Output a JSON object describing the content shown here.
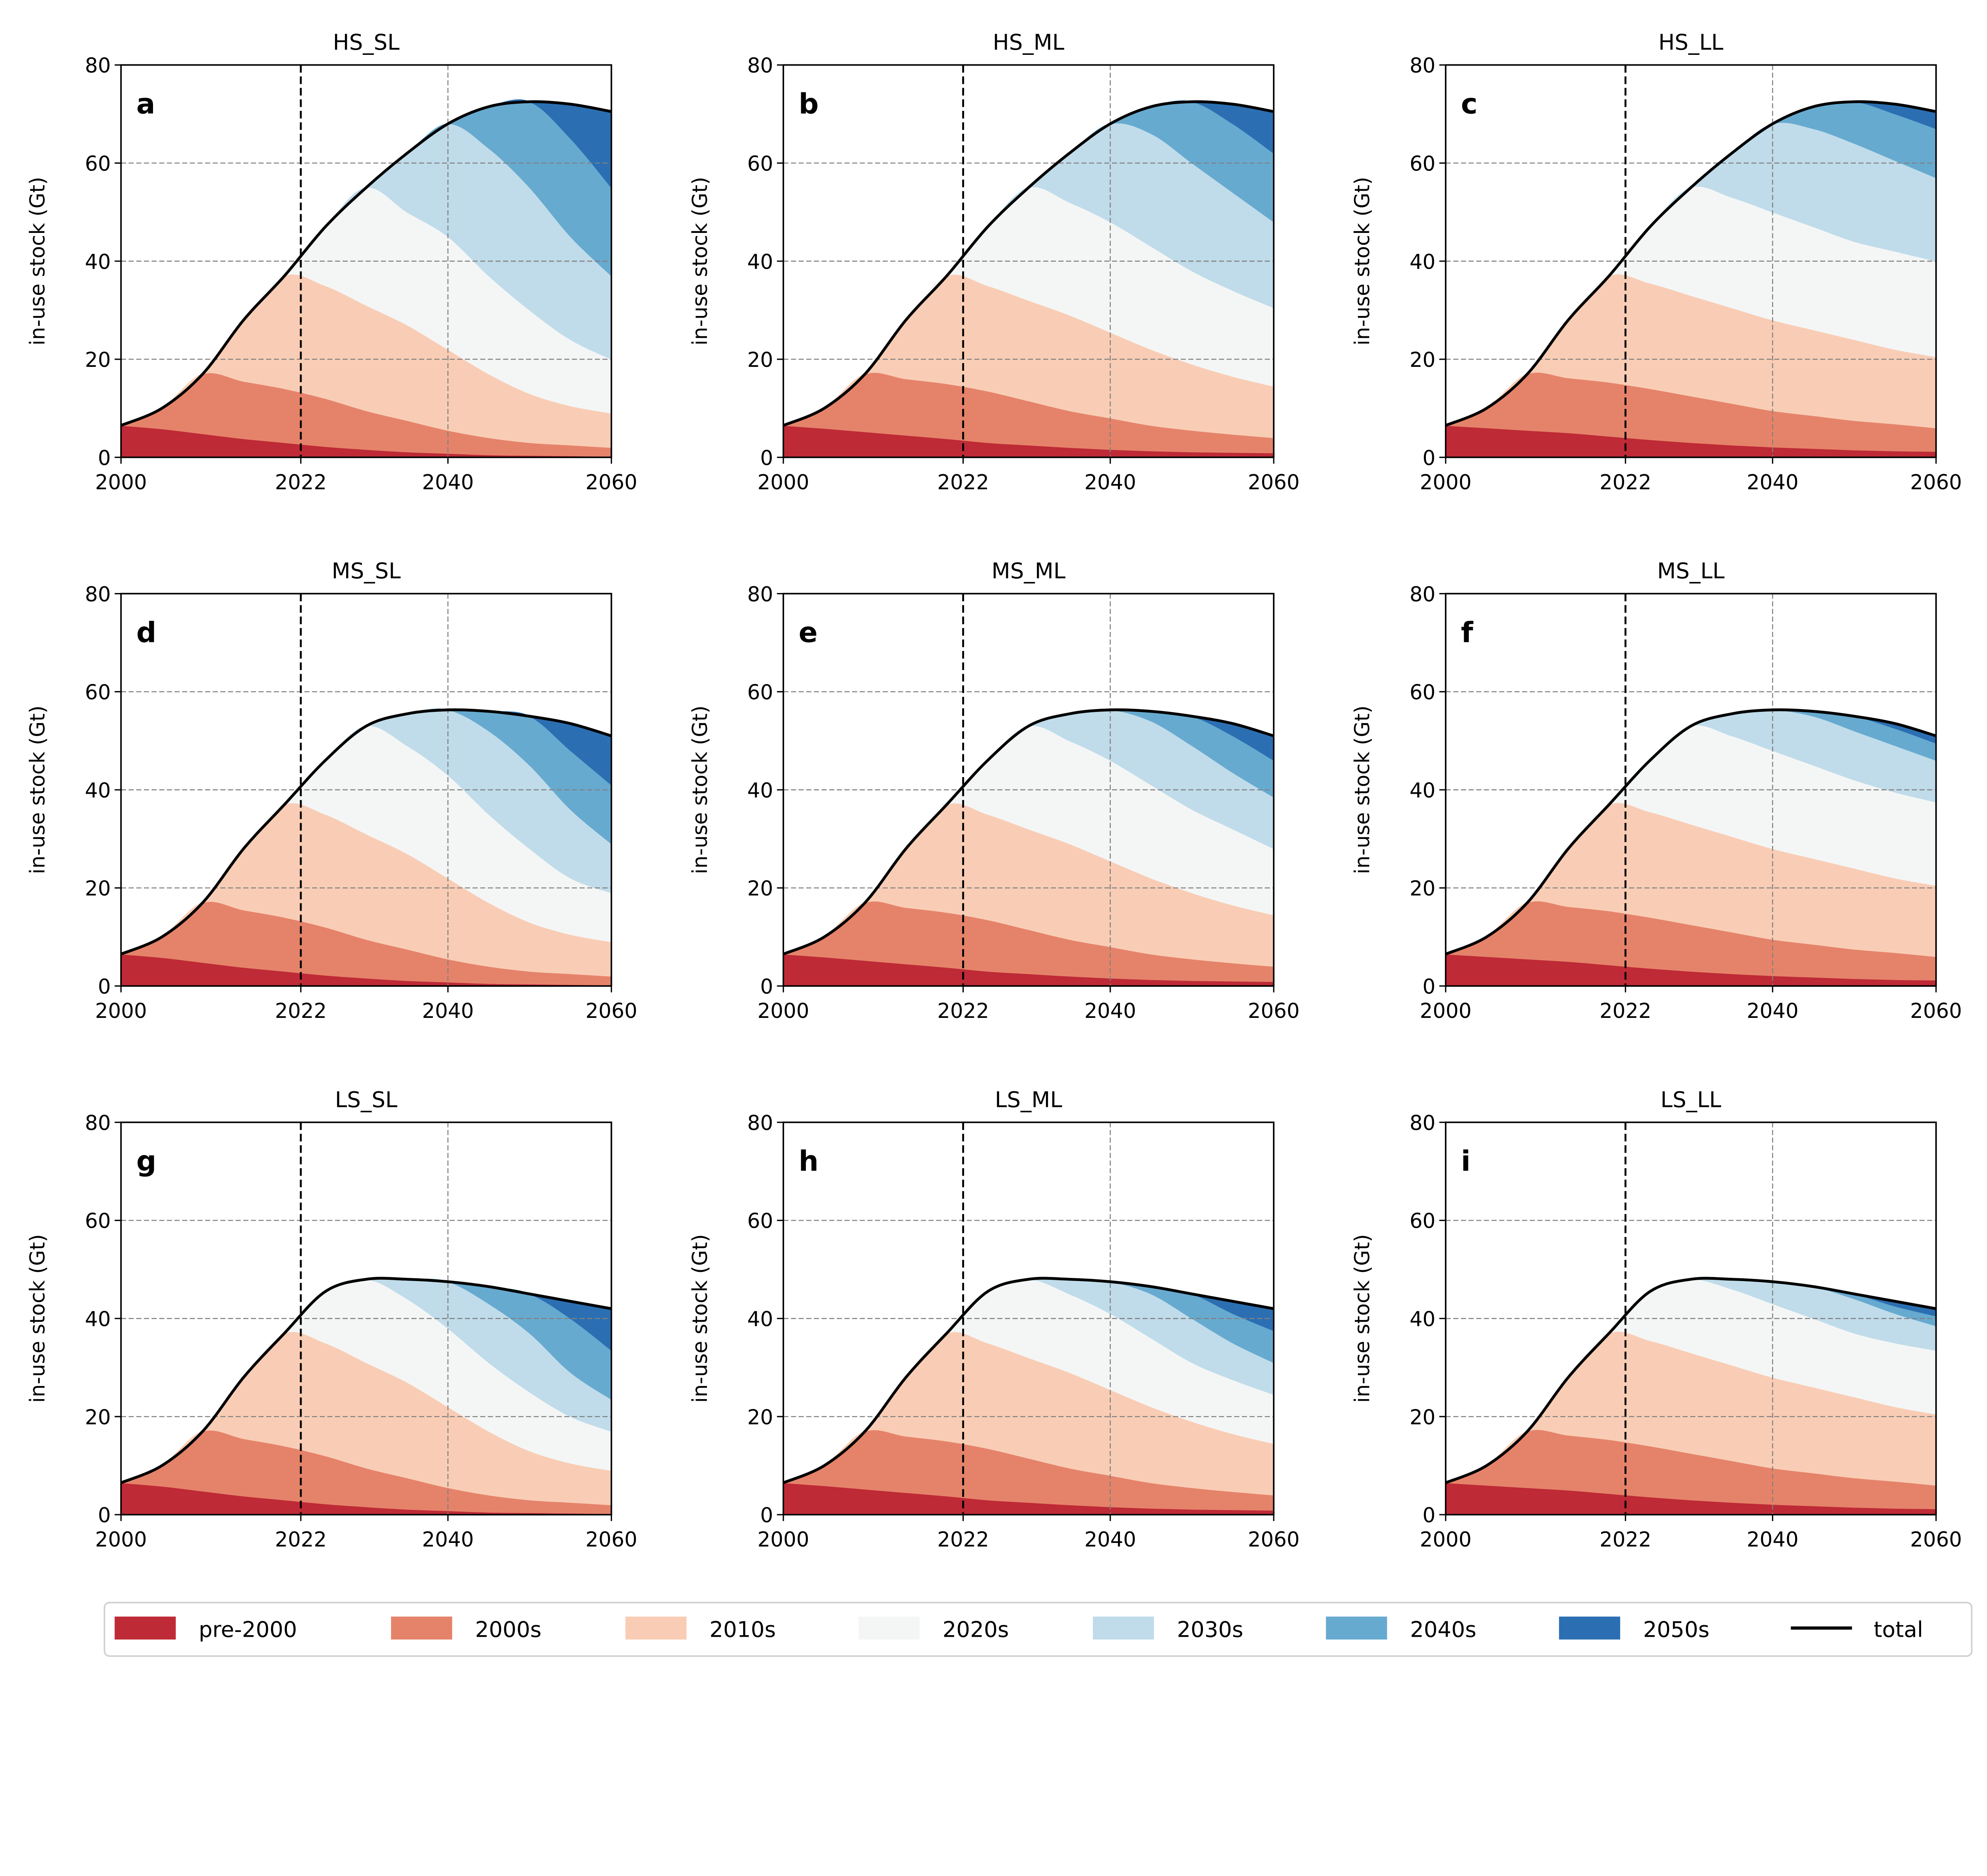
{
  "chart_data": {
    "type": "area",
    "stacked": true,
    "ylabel": "in-use stock (Gt)",
    "ylim": [
      0,
      80
    ],
    "xlim": [
      2000,
      2060
    ],
    "xticks": [
      "2000",
      "2022",
      "2040",
      "2060"
    ],
    "yticks": [
      "0",
      "20",
      "40",
      "60",
      "80"
    ],
    "grid": true,
    "reference_line_x": 2022,
    "legend_position": "bottom",
    "x": [
      2000,
      2005,
      2010,
      2015,
      2020,
      2025,
      2030,
      2035,
      2040,
      2045,
      2050,
      2055,
      2060
    ],
    "series_names": [
      "pre-2000",
      "2000s",
      "2010s",
      "2020s",
      "2030s",
      "2040s",
      "2050s"
    ],
    "total_name": "total",
    "colors": [
      "#be2a36",
      "#e5836a",
      "#f9cdb5",
      "#f4f6f6",
      "#c0dcea",
      "#67aad0",
      "#2b6fb2"
    ],
    "total_color": "#000000",
    "panels": [
      {
        "letter": "a",
        "title": "HS_SL",
        "total": [
          6.5,
          10,
          17,
          28,
          37,
          47,
          55,
          62,
          68,
          71.5,
          72.5,
          72,
          70.5
        ],
        "series": [
          [
            6.5,
            5.8,
            4.8,
            3.8,
            3.0,
            2.2,
            1.6,
            1.1,
            0.8,
            0.5,
            0.4,
            0.3,
            0.2
          ],
          [
            0,
            4.2,
            12.2,
            11.7,
            11,
            9.8,
            7.9,
            6.4,
            4.7,
            3.5,
            2.6,
            2.2,
            1.8
          ],
          [
            0,
            0,
            0,
            12.5,
            23,
            23,
            21.5,
            19.5,
            16.5,
            13,
            10,
            8,
            7
          ],
          [
            0,
            0,
            0,
            0,
            0,
            12,
            24,
            23,
            23,
            20,
            17,
            13.5,
            11
          ],
          [
            0,
            0,
            0,
            0,
            0,
            0,
            0,
            12,
            23,
            26,
            25,
            21,
            17
          ],
          [
            0,
            0,
            0,
            0,
            0,
            0,
            0,
            0,
            0,
            8.5,
            17.5,
            20,
            18
          ],
          [
            0,
            0,
            0,
            0,
            0,
            0,
            0,
            0,
            0,
            0,
            0,
            7,
            15.5
          ]
        ]
      },
      {
        "letter": "b",
        "title": "HS_ML",
        "total": [
          6.5,
          10,
          17,
          28,
          37,
          47,
          55,
          62,
          68,
          71.5,
          72.5,
          72,
          70.5
        ],
        "series": [
          [
            6.5,
            5.9,
            5.2,
            4.5,
            3.8,
            3,
            2.5,
            2,
            1.6,
            1.3,
            1.1,
            1,
            0.9
          ],
          [
            0,
            4.1,
            11.8,
            11.5,
            11.2,
            10.5,
            9,
            7.5,
            6.4,
            5.2,
            4.4,
            3.7,
            3.1
          ],
          [
            0,
            0,
            0,
            12,
            22,
            21.5,
            20.5,
            19.5,
            17.5,
            15.5,
            13.5,
            11.8,
            10.5
          ],
          [
            0,
            0,
            0,
            0,
            0,
            12,
            23,
            23,
            22.5,
            21,
            19,
            17.5,
            16
          ],
          [
            0,
            0,
            0,
            0,
            0,
            0,
            0,
            10,
            20,
            23,
            22,
            20,
            17.5
          ],
          [
            0,
            0,
            0,
            0,
            0,
            0,
            0,
            0,
            0,
            5.5,
            12.5,
            14,
            14
          ],
          [
            0,
            0,
            0,
            0,
            0,
            0,
            0,
            0,
            0,
            0,
            0,
            4,
            8.5
          ]
        ]
      },
      {
        "letter": "c",
        "title": "HS_LL",
        "total": [
          6.5,
          10,
          17,
          28,
          37,
          47,
          55,
          62,
          68,
          71.5,
          72.5,
          72,
          70.5
        ],
        "series": [
          [
            6.5,
            6,
            5.5,
            5,
            4.3,
            3.6,
            3,
            2.5,
            2.1,
            1.8,
            1.5,
            1.3,
            1.2
          ],
          [
            0,
            4,
            11.5,
            11.2,
            11,
            10.4,
            9.5,
            8.5,
            7.4,
            6.7,
            6,
            5.5,
            4.8
          ],
          [
            0,
            0,
            0,
            11.8,
            21.7,
            21.5,
            20.5,
            19.5,
            18.5,
            17.5,
            16.5,
            15.2,
            14.5
          ],
          [
            0,
            0,
            0,
            0,
            0,
            11.5,
            22,
            22.5,
            22,
            21,
            20,
            20,
            19.5
          ],
          [
            0,
            0,
            0,
            0,
            0,
            0,
            0,
            9,
            18,
            20,
            20,
            18.5,
            17
          ],
          [
            0,
            0,
            0,
            0,
            0,
            0,
            0,
            0,
            0,
            4.5,
            8.5,
            9.5,
            10
          ],
          [
            0,
            0,
            0,
            0,
            0,
            0,
            0,
            0,
            0,
            0,
            0,
            2,
            3.5
          ]
        ]
      },
      {
        "letter": "d",
        "title": "MS_SL",
        "total": [
          6.5,
          10,
          17,
          28,
          37,
          46,
          53,
          55.5,
          56.3,
          56,
          55,
          53.5,
          51
        ],
        "series": [
          [
            6.5,
            5.8,
            4.8,
            3.8,
            3.0,
            2.2,
            1.6,
            1.1,
            0.8,
            0.5,
            0.4,
            0.3,
            0.2
          ],
          [
            0,
            4.2,
            12.2,
            11.7,
            11,
            9.8,
            7.9,
            6.4,
            4.7,
            3.5,
            2.6,
            2.2,
            1.8
          ],
          [
            0,
            0,
            0,
            12.5,
            23,
            23,
            21.5,
            19.5,
            16.5,
            13,
            10,
            8,
            7
          ],
          [
            0,
            0,
            0,
            0,
            0,
            11,
            22,
            22,
            21,
            18,
            15,
            11.5,
            10
          ],
          [
            0,
            0,
            0,
            0,
            0,
            0,
            0,
            6.5,
            13.3,
            17,
            17,
            14,
            10
          ],
          [
            0,
            0,
            0,
            0,
            0,
            0,
            0,
            0,
            0,
            4,
            10,
            12,
            12
          ],
          [
            0,
            0,
            0,
            0,
            0,
            0,
            0,
            0,
            0,
            0,
            0,
            5.5,
            10
          ]
        ]
      },
      {
        "letter": "e",
        "title": "MS_ML",
        "total": [
          6.5,
          10,
          17,
          28,
          37,
          46,
          53,
          55.5,
          56.3,
          56,
          55,
          53.5,
          51
        ],
        "series": [
          [
            6.5,
            5.9,
            5.2,
            4.5,
            3.8,
            3,
            2.5,
            2,
            1.6,
            1.3,
            1.1,
            1,
            0.9
          ],
          [
            0,
            4.1,
            11.8,
            11.5,
            11.2,
            10.5,
            9,
            7.5,
            6.4,
            5.2,
            4.4,
            3.7,
            3.1
          ],
          [
            0,
            0,
            0,
            12,
            22,
            21.5,
            20.5,
            19.5,
            17.5,
            15.5,
            13.5,
            11.8,
            10.5
          ],
          [
            0,
            0,
            0,
            0,
            0,
            11,
            21,
            21,
            20.5,
            19,
            17,
            15.5,
            13.5
          ],
          [
            0,
            0,
            0,
            0,
            0,
            0,
            0,
            5.5,
            10.3,
            13,
            13,
            11.5,
            10.5
          ],
          [
            0,
            0,
            0,
            0,
            0,
            0,
            0,
            0,
            0,
            2,
            6,
            7.5,
            7.5
          ],
          [
            0,
            0,
            0,
            0,
            0,
            0,
            0,
            0,
            0,
            0,
            0,
            2.5,
            5
          ]
        ]
      },
      {
        "letter": "f",
        "title": "MS_LL",
        "total": [
          6.5,
          10,
          17,
          28,
          37,
          46,
          53,
          55.5,
          56.3,
          56,
          55,
          53.5,
          51
        ],
        "series": [
          [
            6.5,
            6,
            5.5,
            5,
            4.3,
            3.6,
            3,
            2.5,
            2.1,
            1.8,
            1.5,
            1.3,
            1.2
          ],
          [
            0,
            4,
            11.5,
            11.2,
            11,
            10.4,
            9.5,
            8.5,
            7.4,
            6.7,
            6,
            5.5,
            4.8
          ],
          [
            0,
            0,
            0,
            11.8,
            21.7,
            21.5,
            20.5,
            19.5,
            18.5,
            17.5,
            16.5,
            15.2,
            14.5
          ],
          [
            0,
            0,
            0,
            0,
            0,
            10.5,
            20,
            20.5,
            20,
            19,
            18,
            17.5,
            17
          ],
          [
            0,
            0,
            0,
            0,
            0,
            0,
            0,
            4.5,
            8.3,
            10,
            10,
            9.5,
            8.5
          ],
          [
            0,
            0,
            0,
            0,
            0,
            0,
            0,
            0,
            0,
            1,
            3,
            3.5,
            3.5
          ],
          [
            0,
            0,
            0,
            0,
            0,
            0,
            0,
            0,
            0,
            0,
            0,
            1,
            1.5
          ]
        ]
      },
      {
        "letter": "g",
        "title": "LS_SL",
        "total": [
          6.5,
          10,
          17,
          28,
          37,
          45.5,
          48,
          48,
          47.5,
          46.5,
          45,
          43.5,
          42
        ],
        "series": [
          [
            6.5,
            5.8,
            4.8,
            3.8,
            3.0,
            2.2,
            1.6,
            1.1,
            0.8,
            0.5,
            0.4,
            0.3,
            0.2
          ],
          [
            0,
            4.2,
            12.2,
            11.7,
            11,
            9.8,
            7.9,
            6.4,
            4.7,
            3.5,
            2.6,
            2.2,
            1.8
          ],
          [
            0,
            0,
            0,
            12.5,
            23,
            23,
            21.5,
            19.5,
            16.5,
            13,
            10,
            8,
            7
          ],
          [
            0,
            0,
            0,
            0,
            0,
            10.5,
            17,
            17,
            16,
            14,
            12,
            9.5,
            8
          ],
          [
            0,
            0,
            0,
            0,
            0,
            0,
            0,
            4,
            9.5,
            12,
            12,
            9,
            6.5
          ],
          [
            0,
            0,
            0,
            0,
            0,
            0,
            0,
            0,
            0,
            3.5,
            8,
            11,
            10
          ],
          [
            0,
            0,
            0,
            0,
            0,
            0,
            0,
            0,
            0,
            0,
            0,
            3.5,
            8.5
          ]
        ]
      },
      {
        "letter": "h",
        "title": "LS_ML",
        "total": [
          6.5,
          10,
          17,
          28,
          37,
          45.5,
          48,
          48,
          47.5,
          46.5,
          45,
          43.5,
          42
        ],
        "series": [
          [
            6.5,
            5.9,
            5.2,
            4.5,
            3.8,
            3,
            2.5,
            2,
            1.6,
            1.3,
            1.1,
            1,
            0.9
          ],
          [
            0,
            4.1,
            11.8,
            11.5,
            11.2,
            10.5,
            9,
            7.5,
            6.4,
            5.2,
            4.4,
            3.7,
            3.1
          ],
          [
            0,
            0,
            0,
            12,
            22,
            21.5,
            20.5,
            19.5,
            17.5,
            15.5,
            13.5,
            11.8,
            10.5
          ],
          [
            0,
            0,
            0,
            0,
            0,
            10.5,
            16,
            16,
            15.5,
            14,
            12,
            11,
            10
          ],
          [
            0,
            0,
            0,
            0,
            0,
            0,
            0,
            3,
            6.5,
            9,
            9,
            7.5,
            6.5
          ],
          [
            0,
            0,
            0,
            0,
            0,
            0,
            0,
            0,
            0,
            1.5,
            5,
            6,
            6.5
          ],
          [
            0,
            0,
            0,
            0,
            0,
            0,
            0,
            0,
            0,
            0,
            0,
            2.5,
            4.5
          ]
        ]
      },
      {
        "letter": "i",
        "title": "LS_LL",
        "total": [
          6.5,
          10,
          17,
          28,
          37,
          45.5,
          48,
          48,
          47.5,
          46.5,
          45,
          43.5,
          42
        ],
        "series": [
          [
            6.5,
            6,
            5.5,
            5,
            4.3,
            3.6,
            3,
            2.5,
            2.1,
            1.8,
            1.5,
            1.3,
            1.2
          ],
          [
            0,
            4,
            11.5,
            11.2,
            11,
            10.4,
            9.5,
            8.5,
            7.4,
            6.7,
            6,
            5.5,
            4.8
          ],
          [
            0,
            0,
            0,
            11.8,
            21.7,
            21.5,
            20.5,
            19.5,
            18.5,
            17.5,
            16.5,
            15.2,
            14.5
          ],
          [
            0,
            0,
            0,
            0,
            0,
            10,
            15,
            15.5,
            15,
            14,
            13,
            13,
            13
          ],
          [
            0,
            0,
            0,
            0,
            0,
            0,
            0,
            2,
            4.5,
            6.5,
            7,
            6,
            5
          ],
          [
            0,
            0,
            0,
            0,
            0,
            0,
            0,
            0,
            0,
            0,
            1,
            1.5,
            2
          ],
          [
            0,
            0,
            0,
            0,
            0,
            0,
            0,
            0,
            0,
            0,
            0,
            1,
            1.5
          ]
        ]
      }
    ]
  }
}
